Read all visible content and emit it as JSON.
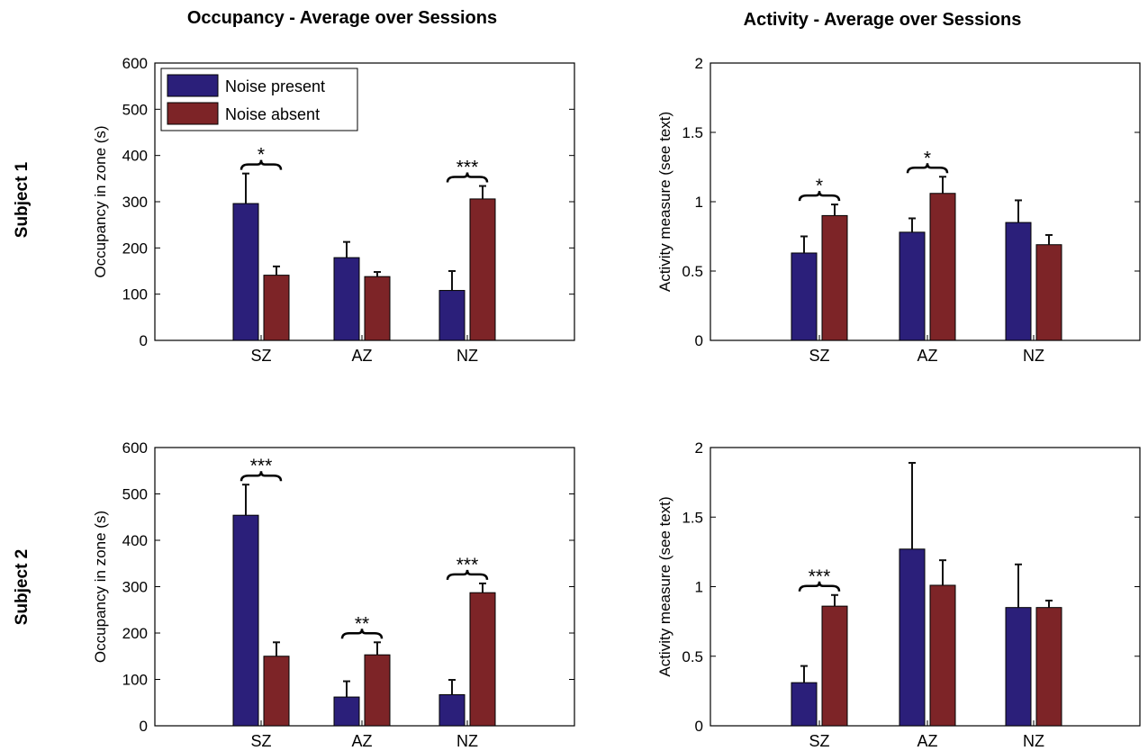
{
  "column_titles": [
    "Occupancy - Average over Sessions",
    "Activity - Average over Sessions"
  ],
  "row_labels": [
    "Subject 1",
    "Subject 2"
  ],
  "legend": [
    {
      "label": "Noise present",
      "color": "#2b1f7a"
    },
    {
      "label": "Noise absent",
      "color": "#7d2427"
    }
  ],
  "chart_data": [
    {
      "type": "bar",
      "title": "Occupancy - Average over Sessions",
      "subject": "Subject 1",
      "categories": [
        "SZ",
        "AZ",
        "NZ"
      ],
      "ylabel": "Occupancy in zone (s)",
      "ylim": [
        0,
        600
      ],
      "yticks": [
        0,
        100,
        200,
        300,
        400,
        500,
        600
      ],
      "legend_position": "top-left",
      "series": [
        {
          "name": "Noise present",
          "values": [
            296,
            179,
            108
          ],
          "errors": [
            65,
            34,
            42
          ]
        },
        {
          "name": "Noise absent",
          "values": [
            141,
            138,
            306
          ],
          "errors": [
            19,
            10,
            28
          ]
        }
      ],
      "significance": [
        "*",
        "",
        "***"
      ]
    },
    {
      "type": "bar",
      "title": "Activity - Average over Sessions",
      "subject": "Subject 1",
      "categories": [
        "SZ",
        "AZ",
        "NZ"
      ],
      "ylabel": "Activity measure (see text)",
      "ylim": [
        0,
        2
      ],
      "yticks": [
        0,
        0.5,
        1,
        1.5,
        2
      ],
      "series": [
        {
          "name": "Noise present",
          "values": [
            0.63,
            0.78,
            0.85
          ],
          "errors": [
            0.12,
            0.1,
            0.16
          ]
        },
        {
          "name": "Noise absent",
          "values": [
            0.9,
            1.06,
            0.69
          ],
          "errors": [
            0.08,
            0.12,
            0.07
          ]
        }
      ],
      "significance": [
        "*",
        "*",
        ""
      ]
    },
    {
      "type": "bar",
      "title": "Occupancy - Average over Sessions",
      "subject": "Subject 2",
      "categories": [
        "SZ",
        "AZ",
        "NZ"
      ],
      "ylabel": "Occupancy in zone (s)",
      "ylim": [
        0,
        600
      ],
      "yticks": [
        0,
        100,
        200,
        300,
        400,
        500,
        600
      ],
      "series": [
        {
          "name": "Noise present",
          "values": [
            454,
            62,
            67
          ],
          "errors": [
            66,
            34,
            32
          ]
        },
        {
          "name": "Noise absent",
          "values": [
            150,
            153,
            287
          ],
          "errors": [
            30,
            27,
            20
          ]
        }
      ],
      "significance": [
        "***",
        "**",
        "***"
      ]
    },
    {
      "type": "bar",
      "title": "Activity - Average over Sessions",
      "subject": "Subject 2",
      "categories": [
        "SZ",
        "AZ",
        "NZ"
      ],
      "ylabel": "Activity measure (see text)",
      "ylim": [
        0,
        2
      ],
      "yticks": [
        0,
        0.5,
        1,
        1.5,
        2
      ],
      "series": [
        {
          "name": "Noise present",
          "values": [
            0.31,
            1.27,
            0.85
          ],
          "errors": [
            0.12,
            0.62,
            0.31
          ]
        },
        {
          "name": "Noise absent",
          "values": [
            0.86,
            1.01,
            0.85
          ],
          "errors": [
            0.08,
            0.18,
            0.05
          ]
        }
      ],
      "significance": [
        "***",
        "",
        ""
      ]
    }
  ]
}
